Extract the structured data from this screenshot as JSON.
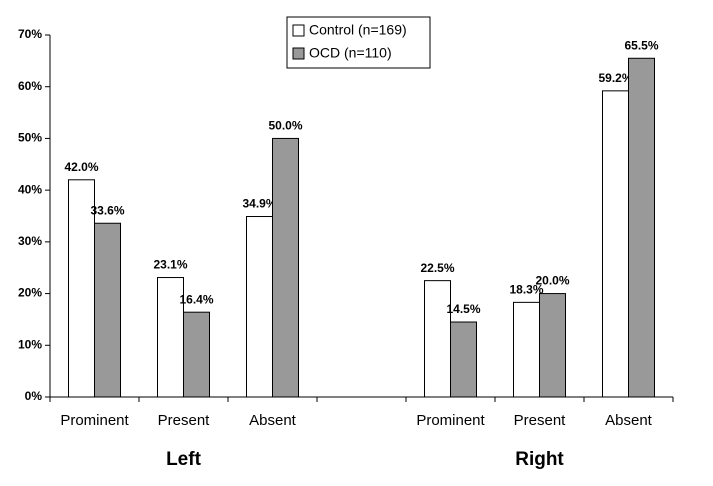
{
  "chart_data": {
    "type": "bar",
    "categories": [
      "Prominent",
      "Present",
      "Absent",
      null,
      "Prominent",
      "Present",
      "Absent"
    ],
    "group_labels": [
      "Left",
      "Right"
    ],
    "series": [
      {
        "name": "Control (n=169)",
        "color": "#ffffff",
        "values": [
          42.0,
          23.1,
          34.9,
          null,
          22.5,
          18.3,
          59.2
        ],
        "value_labels": [
          "42.0%",
          "23.1%",
          "34.9%",
          null,
          "22.5%",
          "18.3%",
          "59.2%"
        ]
      },
      {
        "name": "OCD (n=110)",
        "color": "#999999",
        "values": [
          33.6,
          16.4,
          50.0,
          null,
          14.5,
          20.0,
          65.5
        ],
        "value_labels": [
          "33.6%",
          "16.4%",
          "50.0%",
          null,
          "14.5%",
          "20.0%",
          "65.5%"
        ]
      }
    ],
    "ylim": [
      0,
      70
    ],
    "yticks": [
      {
        "value": 0,
        "label": "0%"
      },
      {
        "value": 10,
        "label": "10%"
      },
      {
        "value": 20,
        "label": "20%"
      },
      {
        "value": 30,
        "label": "30%"
      },
      {
        "value": 40,
        "label": "40%"
      },
      {
        "value": 50,
        "label": "50%"
      },
      {
        "value": 60,
        "label": "60%"
      },
      {
        "value": 70,
        "label": "70%"
      }
    ],
    "legend": "top"
  }
}
